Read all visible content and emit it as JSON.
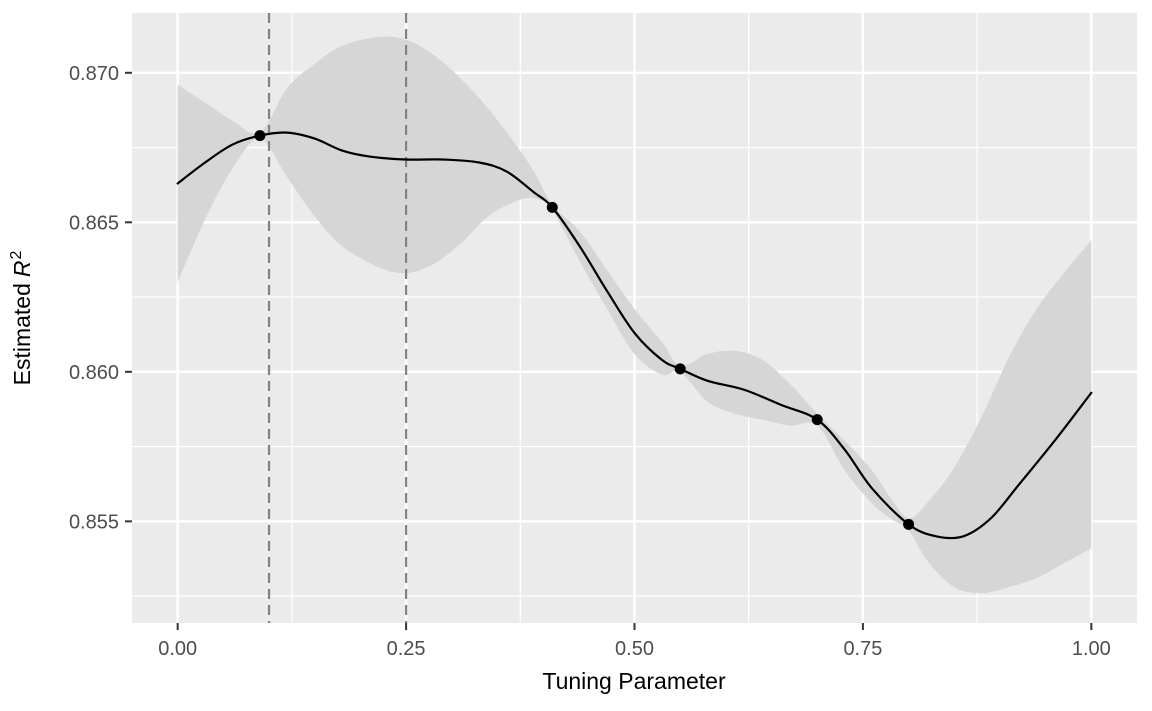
{
  "chart_data": {
    "type": "line",
    "title": "",
    "xlabel": "Tuning Parameter",
    "ylabel_prefix": "Estimated",
    "ylabel_var": "R",
    "ylabel_sup": "2",
    "xlim": [
      -0.05,
      1.05
    ],
    "ylim": [
      0.8516,
      0.872
    ],
    "grid": "on",
    "legend": "none",
    "x_ticks": {
      "values": [
        0.0,
        0.25,
        0.5,
        0.75,
        1.0
      ],
      "labels": [
        "0.00",
        "0.25",
        "0.50",
        "0.75",
        "1.00"
      ]
    },
    "y_ticks": {
      "values": [
        0.87,
        0.865,
        0.86,
        0.855
      ],
      "labels": [
        "0.870",
        "0.865",
        "0.860",
        "0.855"
      ]
    },
    "x_minor": [
      0.125,
      0.375,
      0.625,
      0.875
    ],
    "y_minor": [
      0.8675,
      0.8625,
      0.8575,
      0.8525
    ],
    "vlines": {
      "x": [
        0.1,
        0.25
      ],
      "style": "dashed"
    },
    "points": [
      {
        "x": 0.09,
        "y": 0.8679
      },
      {
        "x": 0.41,
        "y": 0.8655
      },
      {
        "x": 0.55,
        "y": 0.8601
      },
      {
        "x": 0.7,
        "y": 0.8584
      },
      {
        "x": 0.8,
        "y": 0.8549
      }
    ],
    "smooth": {
      "x": [
        0.0,
        0.03,
        0.06,
        0.09,
        0.12,
        0.15,
        0.18,
        0.21,
        0.25,
        0.29,
        0.33,
        0.36,
        0.39,
        0.41,
        0.44,
        0.47,
        0.5,
        0.53,
        0.55,
        0.58,
        0.62,
        0.66,
        0.7,
        0.73,
        0.76,
        0.8,
        0.83,
        0.86,
        0.89,
        0.92,
        0.96,
        1.0
      ],
      "y": [
        0.8663,
        0.867,
        0.8676,
        0.8679,
        0.868,
        0.8678,
        0.8674,
        0.8672,
        0.8671,
        0.8671,
        0.867,
        0.8667,
        0.866,
        0.8655,
        0.8642,
        0.8627,
        0.8613,
        0.8604,
        0.8601,
        0.8597,
        0.8594,
        0.8589,
        0.8584,
        0.8574,
        0.8561,
        0.8549,
        0.8545,
        0.8545,
        0.8551,
        0.8562,
        0.8577,
        0.8593
      ]
    },
    "ribbon": {
      "x": [
        0.0,
        0.03,
        0.06,
        0.09,
        0.12,
        0.15,
        0.18,
        0.22,
        0.25,
        0.28,
        0.31,
        0.34,
        0.37,
        0.39,
        0.41,
        0.44,
        0.47,
        0.5,
        0.53,
        0.55,
        0.58,
        0.61,
        0.64,
        0.67,
        0.7,
        0.73,
        0.76,
        0.78,
        0.8,
        0.82,
        0.85,
        0.88,
        0.91,
        0.94,
        0.97,
        1.0
      ],
      "lower": [
        0.863,
        0.8651,
        0.8668,
        0.8678,
        0.8665,
        0.8652,
        0.8642,
        0.8635,
        0.8633,
        0.8636,
        0.8643,
        0.8652,
        0.8657,
        0.8658,
        0.8654,
        0.8637,
        0.8621,
        0.8606,
        0.8599,
        0.86,
        0.859,
        0.8586,
        0.8584,
        0.8582,
        0.8582,
        0.8567,
        0.8556,
        0.8551,
        0.8547,
        0.8537,
        0.8528,
        0.8526,
        0.8528,
        0.8531,
        0.8536,
        0.8541
      ],
      "upper": [
        0.8696,
        0.869,
        0.8684,
        0.868,
        0.8695,
        0.8703,
        0.8709,
        0.8712,
        0.8711,
        0.8706,
        0.8698,
        0.8688,
        0.8676,
        0.8667,
        0.8656,
        0.8647,
        0.8634,
        0.8621,
        0.861,
        0.8602,
        0.8606,
        0.8607,
        0.8604,
        0.8596,
        0.8586,
        0.8577,
        0.8567,
        0.8558,
        0.8551,
        0.8556,
        0.8568,
        0.8585,
        0.8605,
        0.8621,
        0.8633,
        0.8644
      ]
    },
    "colors": {
      "panel": "#EBEBEB",
      "grid": "#FFFFFF",
      "ribbon": "#D6D6D6",
      "line": "#000000",
      "point": "#000000",
      "vline": "#828282",
      "tick_mark": "#333333",
      "tick_label": "#4D4D4D",
      "axis_title": "#000000"
    }
  }
}
